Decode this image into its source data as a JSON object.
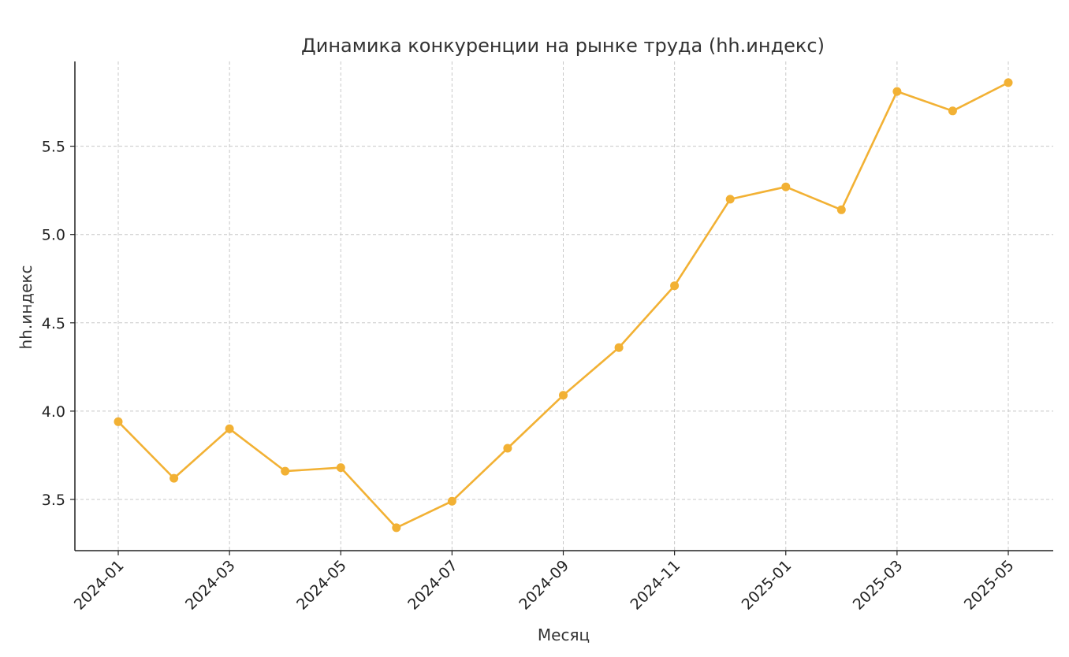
{
  "chart_data": {
    "type": "line",
    "title": "Динамика конкуренции на рынке труда (hh.индекс)",
    "xlabel": "Месяц",
    "ylabel": "hh.индекс",
    "x": [
      "2024-01",
      "2024-02",
      "2024-03",
      "2024-04",
      "2024-05",
      "2024-06",
      "2024-07",
      "2024-08",
      "2024-09",
      "2024-10",
      "2024-11",
      "2024-12",
      "2025-01",
      "2025-02",
      "2025-03",
      "2025-04",
      "2025-05"
    ],
    "x_tick_labels": [
      "2024-01",
      "2024-03",
      "2024-05",
      "2024-07",
      "2024-09",
      "2024-11",
      "2025-01",
      "2025-03",
      "2025-05"
    ],
    "series": [
      {
        "values": [
          3.94,
          3.62,
          3.9,
          3.66,
          3.68,
          3.34,
          3.49,
          3.79,
          4.09,
          4.36,
          4.71,
          5.2,
          5.27,
          5.14,
          5.81,
          5.7,
          5.86
        ]
      }
    ],
    "y_ticks": [
      3.5,
      4.0,
      4.5,
      5.0,
      5.5
    ],
    "y_tick_labels": [
      "3.5",
      "4.0",
      "4.5",
      "5.0",
      "5.5"
    ],
    "ylim": [
      3.21,
      5.98
    ],
    "grid": true,
    "colors": {
      "line": "#f2b134",
      "axis": "#222222",
      "grid": "#c8c8c8"
    }
  }
}
